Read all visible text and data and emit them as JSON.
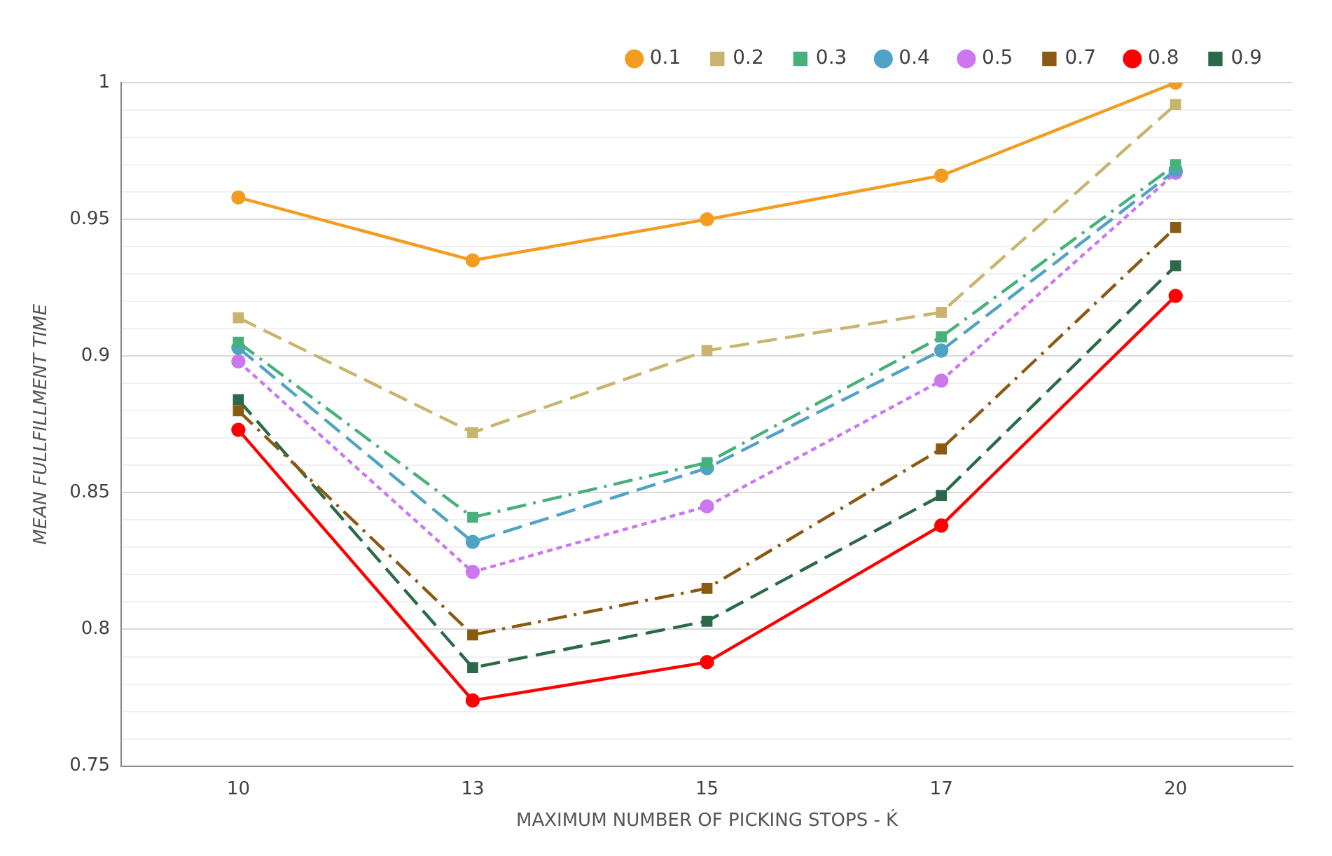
{
  "chart_data": {
    "type": "line",
    "xlabel": "MAXIMUM NUMBER OF PICKING STOPS - Ḱ",
    "ylabel": "MEAN FULLFILLMENT TIME",
    "categories": [
      "10",
      "13",
      "15",
      "17",
      "20"
    ],
    "series": [
      {
        "name": "0.1",
        "color": "#f39c1f",
        "line_style": "solid",
        "marker": "circle",
        "values": [
          0.958,
          0.935,
          0.95,
          0.966,
          1.0
        ]
      },
      {
        "name": "0.2",
        "color": "#c8b46e",
        "line_style": "dashed",
        "marker": "square",
        "values": [
          0.914,
          0.872,
          0.902,
          0.916,
          0.992
        ]
      },
      {
        "name": "0.3",
        "color": "#48b07a",
        "line_style": "dashdot",
        "marker": "square",
        "values": [
          0.905,
          0.841,
          0.861,
          0.907,
          0.97
        ]
      },
      {
        "name": "0.4",
        "color": "#4fa3c4",
        "line_style": "dashed",
        "marker": "circle",
        "values": [
          0.903,
          0.832,
          0.859,
          0.902,
          0.968
        ]
      },
      {
        "name": "0.5",
        "color": "#cc77f0",
        "line_style": "dotted",
        "marker": "circle",
        "values": [
          0.898,
          0.821,
          0.845,
          0.891,
          0.967
        ]
      },
      {
        "name": "0.7",
        "color": "#8b5a12",
        "line_style": "dashdot",
        "marker": "square",
        "values": [
          0.88,
          0.798,
          0.815,
          0.866,
          0.947
        ]
      },
      {
        "name": "0.8",
        "color": "#ff0000",
        "line_style": "solid",
        "marker": "circle",
        "values": [
          0.873,
          0.774,
          0.788,
          0.838,
          0.922
        ]
      },
      {
        "name": "0.9",
        "color": "#2a6a48",
        "line_style": "dashed",
        "marker": "square",
        "values": [
          0.884,
          0.786,
          0.803,
          0.849,
          0.933
        ]
      }
    ],
    "ylim": [
      0.75,
      1
    ],
    "yticks": [
      0.75,
      {
        "value": 0.76,
        "label": null
      },
      {
        "value": 0.77,
        "label": null
      },
      {
        "value": 0.78,
        "label": null
      },
      {
        "value": 0.79,
        "label": null
      },
      0.8,
      {
        "value": 0.81,
        "label": null
      },
      {
        "value": 0.82,
        "label": null
      },
      {
        "value": 0.83,
        "label": null
      },
      {
        "value": 0.84,
        "label": null
      },
      0.85,
      {
        "value": 0.86,
        "label": null
      },
      {
        "value": 0.87,
        "label": null
      },
      {
        "value": 0.88,
        "label": null
      },
      {
        "value": 0.89,
        "label": null
      },
      0.9,
      {
        "value": 0.91,
        "label": null
      },
      {
        "value": 0.92,
        "label": null
      },
      {
        "value": 0.93,
        "label": null
      },
      {
        "value": 0.94,
        "label": null
      },
      0.95,
      {
        "value": 0.96,
        "label": null
      },
      {
        "value": 0.97,
        "label": null
      },
      {
        "value": 0.98,
        "label": null
      },
      {
        "value": 0.99,
        "label": null
      },
      1
    ],
    "grid": "y",
    "legend": "top"
  }
}
